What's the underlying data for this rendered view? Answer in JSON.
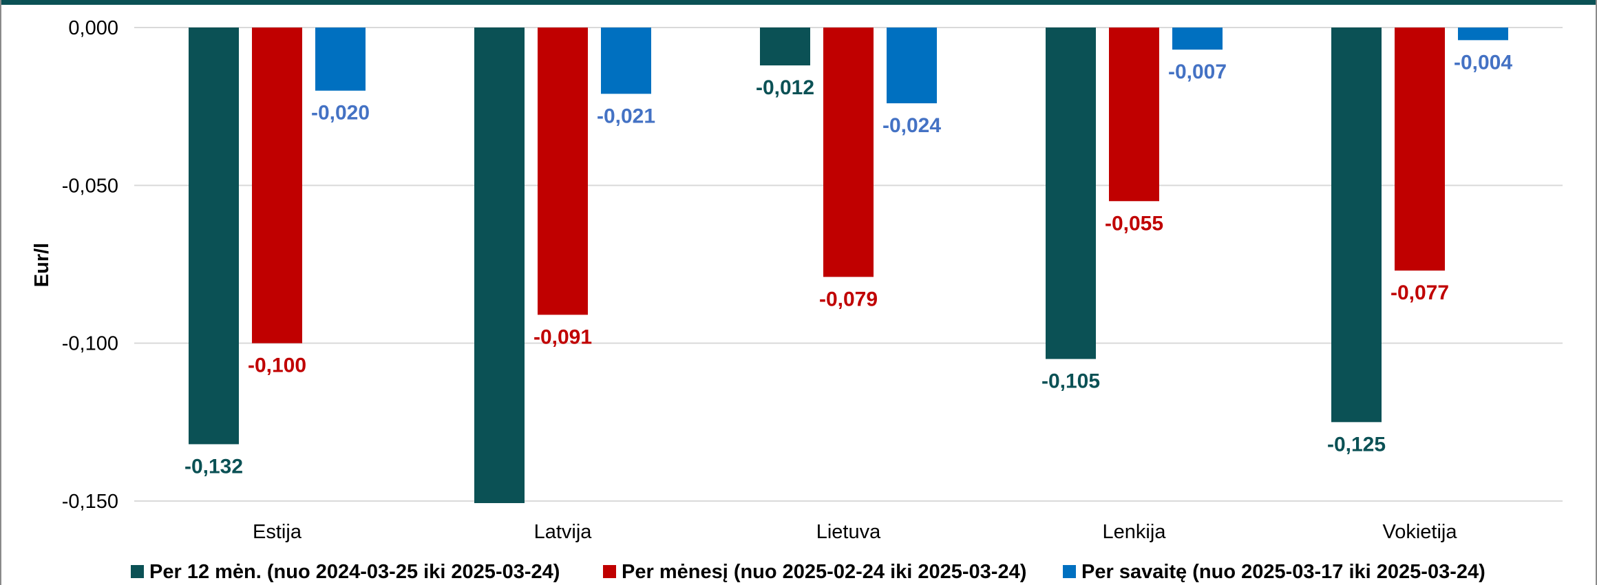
{
  "chart_data": {
    "type": "bar",
    "title": "",
    "xlabel": "",
    "ylabel": "Eur/l",
    "ylim": [
      -0.15,
      0
    ],
    "yticks": [
      "0,000",
      "-0,050",
      "-0,100",
      "-0,150"
    ],
    "ytick_values": [
      0,
      -0.05,
      -0.1,
      -0.15
    ],
    "grid": true,
    "legend_position": "bottom",
    "categories": [
      "Estija",
      "Latvija",
      "Lietuva",
      "Lenkija",
      "Vokietija"
    ],
    "series": [
      {
        "name": "Per 12 mėn. (nuo 2024-03-25 iki 2025-03-24)",
        "color": "#0b5155",
        "label_color": "#0b5155",
        "values": [
          -0.132,
          -0.153,
          -0.012,
          -0.105,
          -0.125
        ],
        "labels": [
          "-0,132",
          "",
          "-0,012",
          "-0,105",
          "-0,125"
        ]
      },
      {
        "name": "Per mėnesį (nuo 2025-02-24 iki 2025-03-24)",
        "color": "#c00000",
        "label_color": "#c00000",
        "values": [
          -0.1,
          -0.091,
          -0.079,
          -0.055,
          -0.077
        ],
        "labels": [
          "-0,100",
          "-0,091",
          "-0,079",
          "-0,055",
          "-0,077"
        ]
      },
      {
        "name": "Per savaitę (nuo 2025-03-17 iki 2025-03-24)",
        "color": "#0070c0",
        "label_color": "#4472c4",
        "values": [
          -0.02,
          -0.021,
          -0.024,
          -0.007,
          -0.004
        ],
        "labels": [
          "-0,020",
          "-0,021",
          "-0,024",
          "-0,007",
          "-0,004"
        ]
      }
    ],
    "colors": {
      "frame_top": "#0b5155",
      "grid": "#d9d9d9"
    }
  }
}
